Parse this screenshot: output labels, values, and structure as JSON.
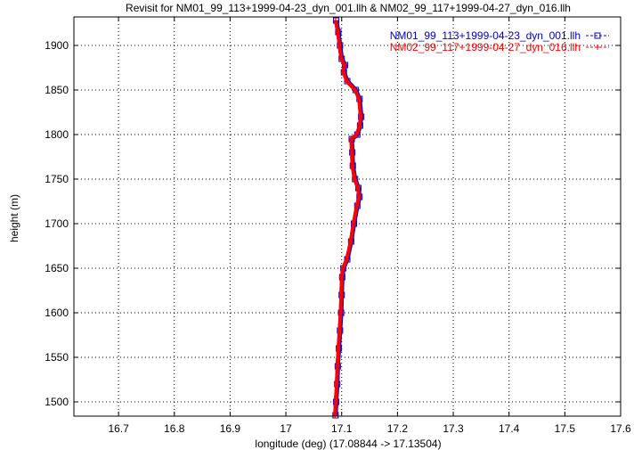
{
  "chart_data": {
    "type": "line",
    "title": "Revisit for NM01_99_113+1999-04-23_dyn_001.llh & NM02_99_117+1999-04-27_dyn_016.llh",
    "xlabel": "longitude (deg) (17.08844 -> 17.13504)",
    "ylabel": "height (m)",
    "xlim": [
      16.62,
      17.6
    ],
    "ylim": [
      1484,
      1932
    ],
    "x_ticks": [
      "16.7",
      "16.8",
      "16.9",
      "17",
      "17.1",
      "17.2",
      "17.3",
      "17.4",
      "17.5",
      "17.6"
    ],
    "y_ticks": [
      "1500",
      "1550",
      "1600",
      "1650",
      "1700",
      "1750",
      "1800",
      "1850",
      "1900"
    ],
    "grid": true,
    "legend_position": "top-right",
    "series": [
      {
        "name": "NM01_99_113+1999-04-23_dyn_001.llh",
        "color": "#0000cc",
        "marker": "square",
        "points": [
          [
            17.089,
            1485
          ],
          [
            17.09,
            1500
          ],
          [
            17.092,
            1520
          ],
          [
            17.093,
            1540
          ],
          [
            17.095,
            1560
          ],
          [
            17.097,
            1580
          ],
          [
            17.099,
            1600
          ],
          [
            17.1,
            1620
          ],
          [
            17.101,
            1640
          ],
          [
            17.103,
            1650
          ],
          [
            17.11,
            1660
          ],
          [
            17.117,
            1680
          ],
          [
            17.122,
            1700
          ],
          [
            17.128,
            1720
          ],
          [
            17.132,
            1730
          ],
          [
            17.13,
            1740
          ],
          [
            17.124,
            1750
          ],
          [
            17.12,
            1765
          ],
          [
            17.119,
            1780
          ],
          [
            17.118,
            1795
          ],
          [
            17.128,
            1800
          ],
          [
            17.133,
            1810
          ],
          [
            17.135,
            1820
          ],
          [
            17.132,
            1840
          ],
          [
            17.125,
            1850
          ],
          [
            17.11,
            1860
          ],
          [
            17.104,
            1870
          ],
          [
            17.106,
            1878
          ],
          [
            17.1,
            1885
          ],
          [
            17.097,
            1900
          ],
          [
            17.094,
            1915
          ],
          [
            17.09,
            1928
          ]
        ]
      },
      {
        "name": "NM02_99_117+1999-04-27_dyn_016.llh",
        "color": "#ff0000",
        "marker": "plus",
        "points": [
          [
            17.088,
            1485
          ],
          [
            17.089,
            1500
          ],
          [
            17.091,
            1520
          ],
          [
            17.092,
            1540
          ],
          [
            17.094,
            1560
          ],
          [
            17.096,
            1580
          ],
          [
            17.098,
            1600
          ],
          [
            17.099,
            1620
          ],
          [
            17.1,
            1640
          ],
          [
            17.102,
            1650
          ],
          [
            17.109,
            1660
          ],
          [
            17.116,
            1680
          ],
          [
            17.121,
            1700
          ],
          [
            17.127,
            1720
          ],
          [
            17.131,
            1730
          ],
          [
            17.129,
            1740
          ],
          [
            17.123,
            1750
          ],
          [
            17.119,
            1765
          ],
          [
            17.118,
            1780
          ],
          [
            17.117,
            1795
          ],
          [
            17.127,
            1800
          ],
          [
            17.132,
            1810
          ],
          [
            17.134,
            1820
          ],
          [
            17.131,
            1840
          ],
          [
            17.124,
            1850
          ],
          [
            17.109,
            1860
          ],
          [
            17.103,
            1870
          ],
          [
            17.105,
            1878
          ],
          [
            17.099,
            1885
          ],
          [
            17.096,
            1900
          ],
          [
            17.093,
            1915
          ],
          [
            17.089,
            1928
          ]
        ]
      }
    ]
  }
}
